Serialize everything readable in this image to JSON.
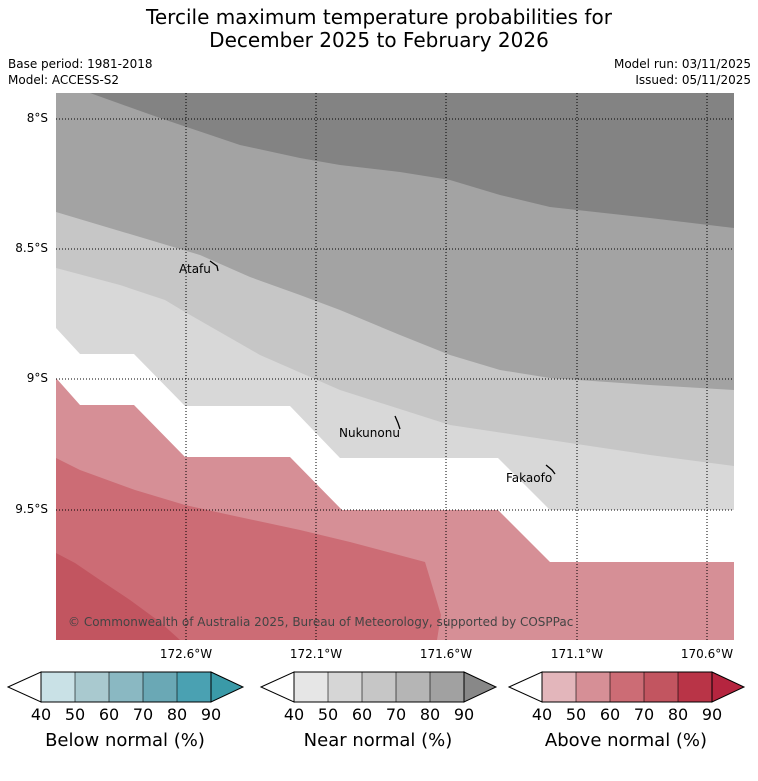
{
  "title": {
    "line1": "Tercile maximum temperature probabilities for",
    "line2": "December 2025 to February 2026"
  },
  "meta": {
    "base_period": "Base period: 1981-2018",
    "model": "Model: ACCESS-S2",
    "model_run": "Model run: 03/11/2025",
    "issued": "Issued: 05/11/2025"
  },
  "map": {
    "lat_labels": [
      "8°S",
      "8.5°S",
      "9°S",
      "9.5°S"
    ],
    "lon_labels": [
      "172.6°W",
      "172.1°W",
      "171.6°W",
      "171.1°W",
      "170.6°W"
    ],
    "places": [
      "Atafu",
      "Nukunonu",
      "Fakaofo"
    ],
    "copyright": "© Commonwealth of Australia 2025, Bureau of Meteorology, supported by COSPPac"
  },
  "colorbars": [
    {
      "label": "Below normal (%)",
      "ticks": [
        "40",
        "50",
        "60",
        "70",
        "80",
        "90"
      ],
      "colors": [
        "#ffffff",
        "#c9e1e6",
        "#a9c9cf",
        "#8ab8c2",
        "#6aa8b5",
        "#4aa1b2",
        "#3a9aa8"
      ]
    },
    {
      "label": "Near normal (%)",
      "ticks": [
        "40",
        "50",
        "60",
        "70",
        "80",
        "90"
      ],
      "colors": [
        "#ffffff",
        "#e6e6e6",
        "#d6d6d6",
        "#c6c6c6",
        "#b5b5b5",
        "#a1a1a1",
        "#888888"
      ]
    },
    {
      "label": "Above normal (%)",
      "ticks": [
        "40",
        "50",
        "60",
        "70",
        "80",
        "90"
      ],
      "colors": [
        "#ffffff",
        "#e3b6bb",
        "#d68f96",
        "#cc6c75",
        "#c25560",
        "#b93447",
        "#b5253f"
      ]
    }
  ],
  "palette": {
    "near_90": "#838383",
    "near_80": "#a3a3a3",
    "near_70": "#c6c6c6",
    "near_60": "#d8d8d8",
    "above_50": "#d68f96",
    "above_60": "#cc6c75",
    "above_70": "#c25560"
  }
}
